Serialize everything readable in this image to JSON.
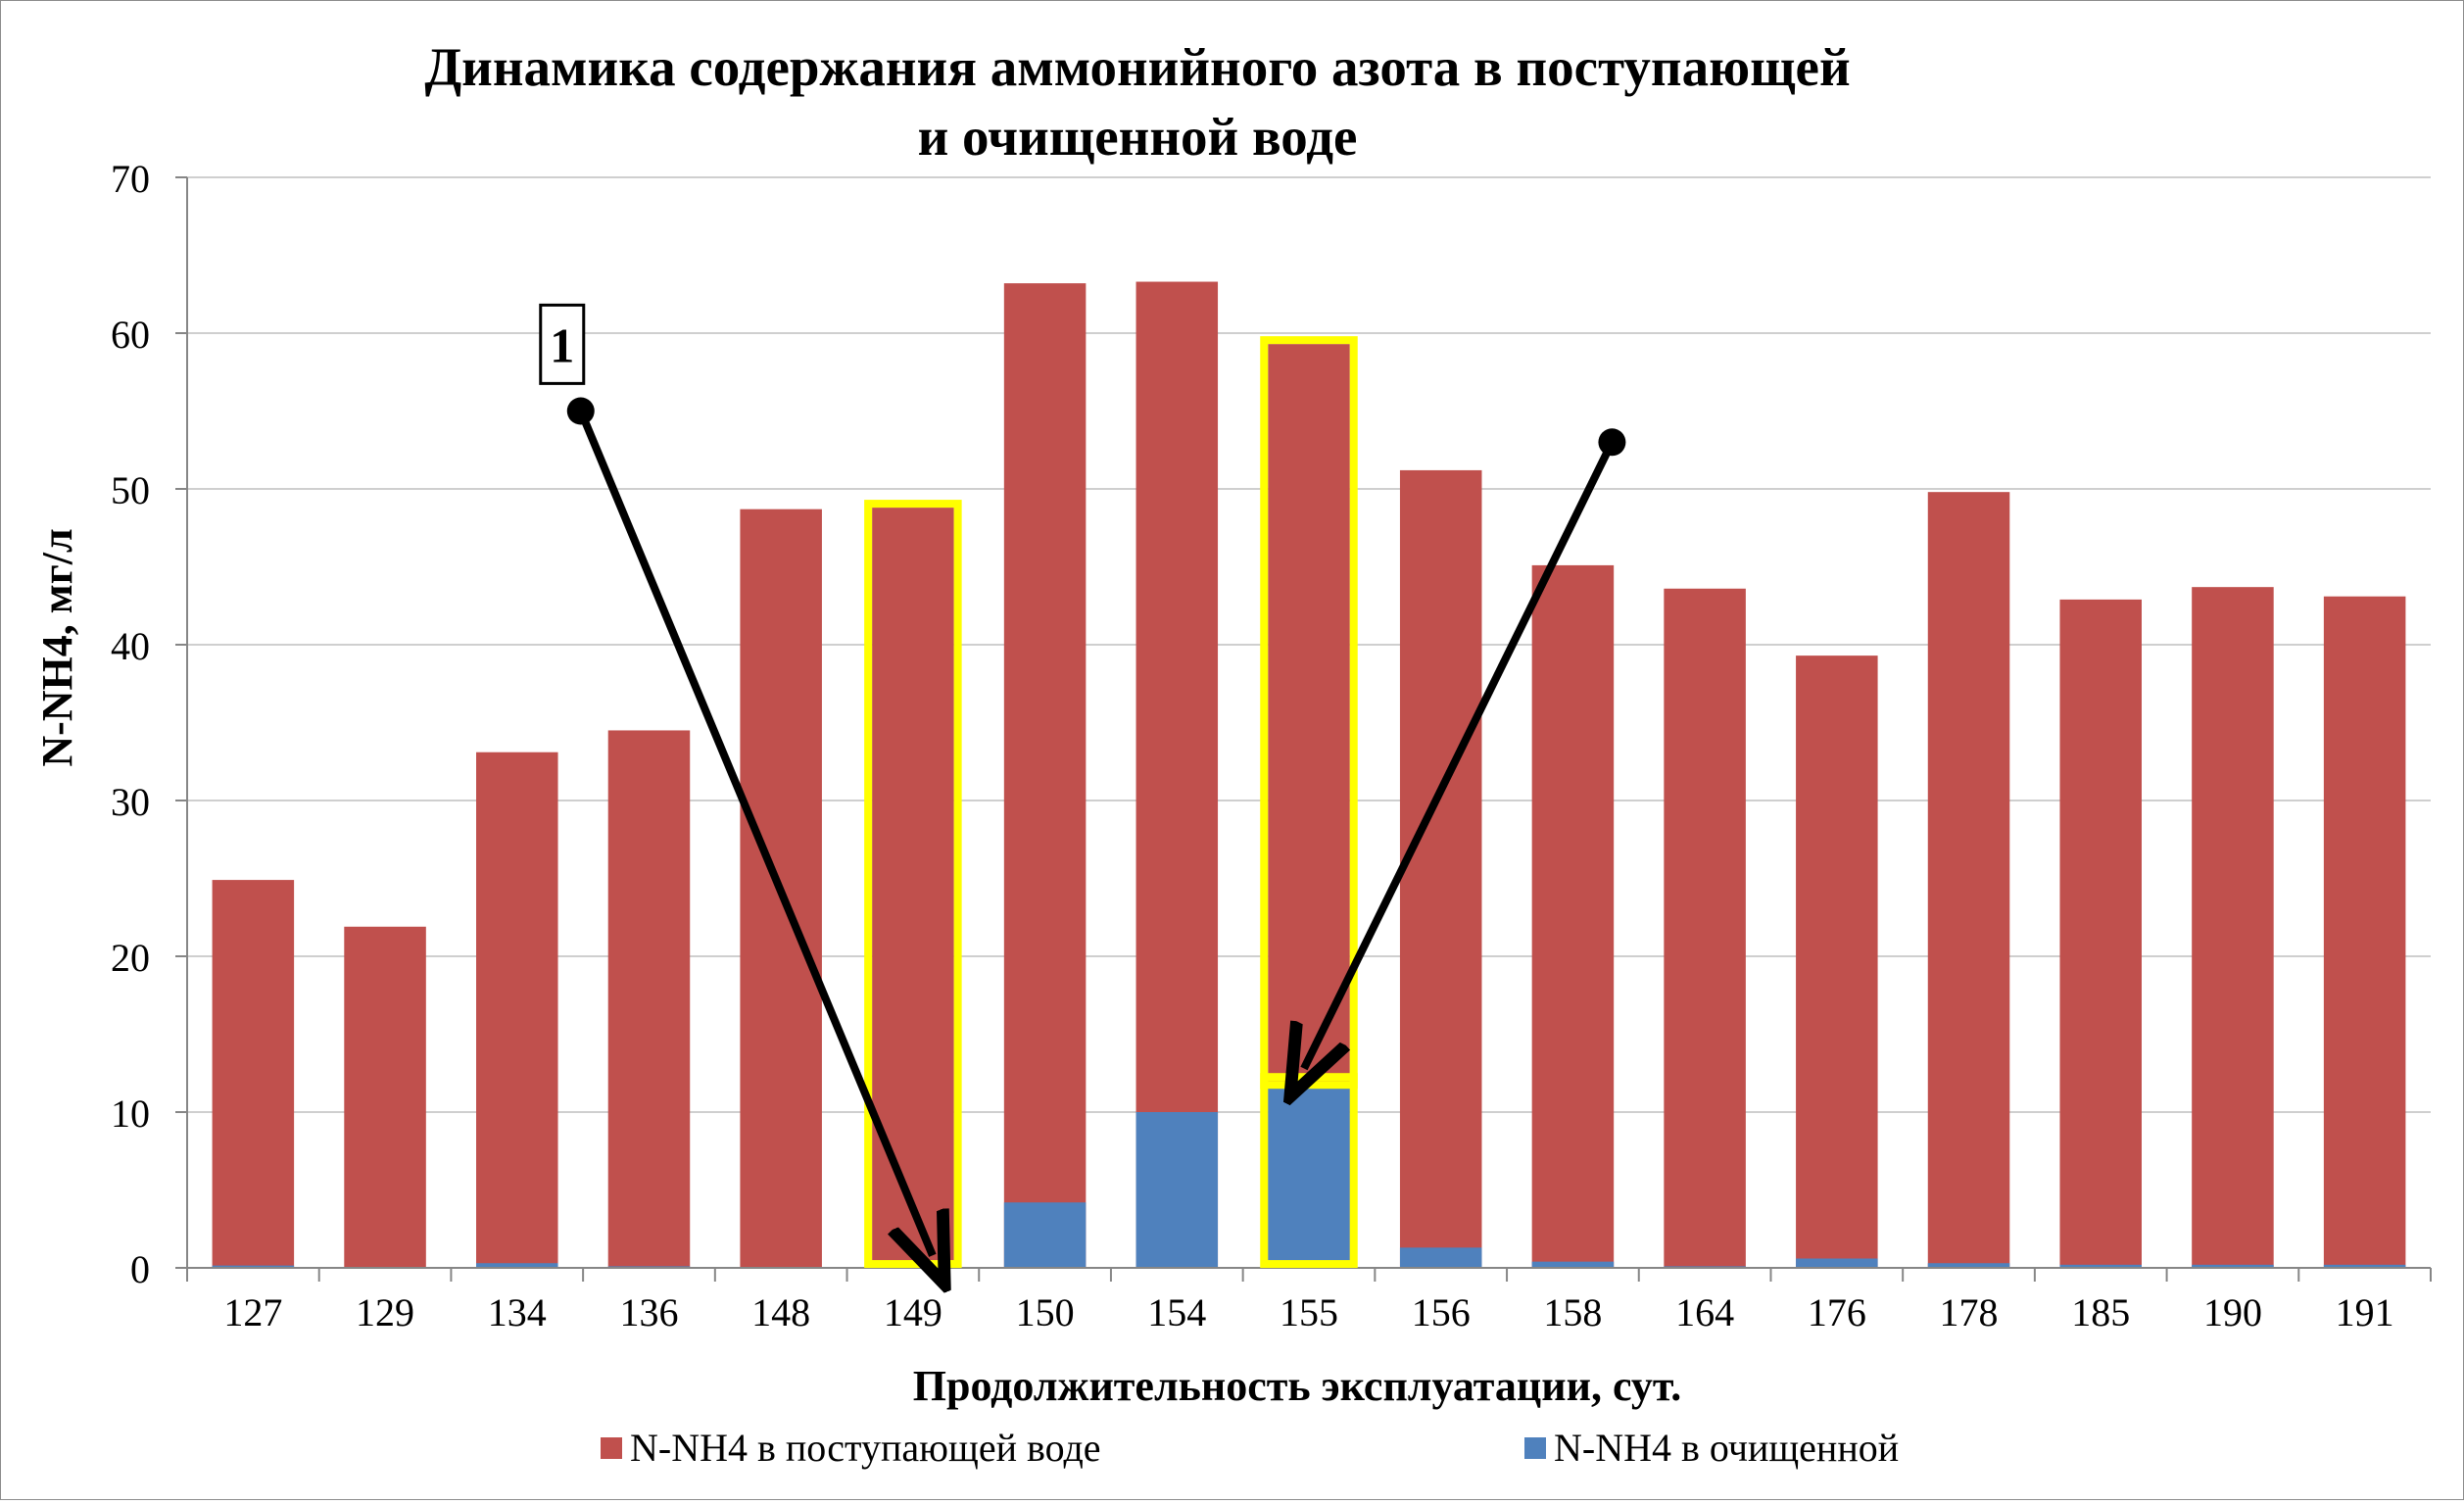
{
  "chart_data": {
    "type": "bar",
    "stacked": false,
    "overlap": true,
    "title_lines": [
      "Динамика содержания аммонийного азота в поступающей",
      "и очищенной воде"
    ],
    "xlabel": "Продолжительность эксплуатации, сут.",
    "ylabel": "N-NH4, мг/л",
    "ylim": [
      0,
      70
    ],
    "yticks": [
      "0",
      "10",
      "20",
      "30",
      "40",
      "50",
      "60",
      "70"
    ],
    "grid": true,
    "legend_position": "bottom",
    "categories": [
      "127",
      "129",
      "134",
      "136",
      "148",
      "149",
      "150",
      "154",
      "155",
      "156",
      "158",
      "164",
      "176",
      "178",
      "185",
      "190",
      "191"
    ],
    "series": [
      {
        "name": "N-NH4 в поступающей воде",
        "color": "#c0504d",
        "values": [
          24.9,
          21.9,
          33.1,
          34.5,
          48.7,
          48.8,
          63.2,
          63.3,
          59.3,
          51.2,
          45.1,
          43.6,
          39.3,
          49.8,
          42.9,
          43.7,
          43.1
        ]
      },
      {
        "name": "N-NH4 в очищенной",
        "color": "#4f81bd",
        "values": [
          0.15,
          0.05,
          0.3,
          0.1,
          0.05,
          0.05,
          4.2,
          10.0,
          11.8,
          1.3,
          0.4,
          0.1,
          0.6,
          0.3,
          0.2,
          0.2,
          0.2
        ]
      }
    ],
    "annotations": {
      "label": "1",
      "highlight_color": "#ffff00",
      "arrow_color": "#000000",
      "highlighted": [
        {
          "category": "149",
          "from": 0.5,
          "to": 48.8
        },
        {
          "category": "155",
          "from": 12.0,
          "to": 59.3
        },
        {
          "category": "155",
          "from": 0.5,
          "to": 12.0
        }
      ],
      "arrows": [
        {
          "start": {
            "category": "134",
            "y": 55.0
          },
          "end": {
            "category": "149",
            "y": 0.8
          }
        },
        {
          "start": {
            "category": "158",
            "y": 53.0
          },
          "end": {
            "category": "155",
            "y": 12.8
          }
        }
      ]
    }
  }
}
